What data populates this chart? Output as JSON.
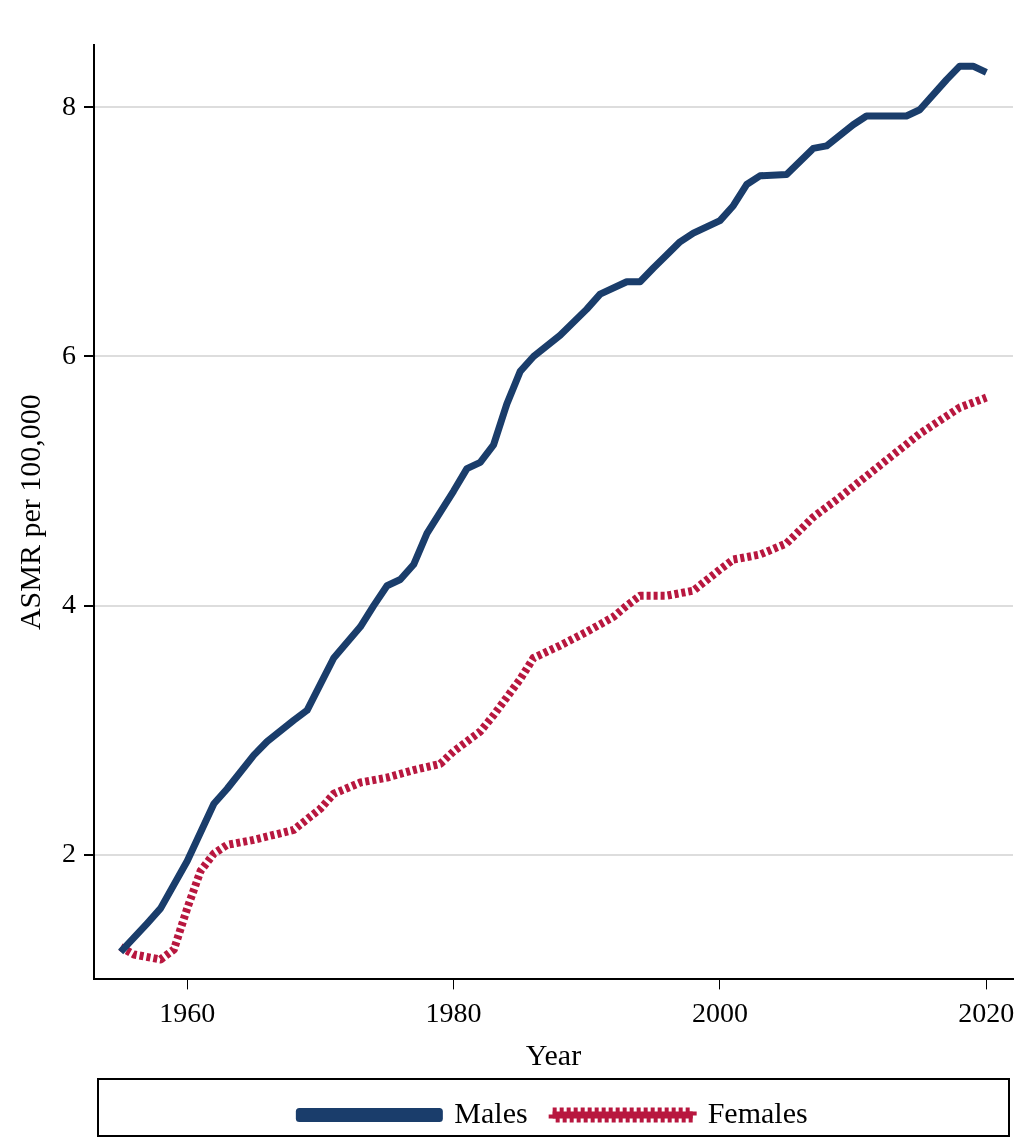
{
  "chart_data": {
    "type": "line",
    "xlabel": "Year",
    "ylabel": "ASMR per 100,000",
    "xlim": [
      1953,
      2022
    ],
    "xticks": [
      1960,
      1980,
      2000,
      2020
    ],
    "ylim": [
      1,
      8.5
    ],
    "yticks": [
      2,
      4,
      6,
      8
    ],
    "grid": "y",
    "legend": "bottom",
    "marker": "none",
    "series": [
      {
        "name": "Males",
        "color": "#1a3d6b",
        "line_style": "solid",
        "x": [
          1955,
          1957,
          1958,
          1960,
          1962,
          1963,
          1965,
          1966,
          1968,
          1969,
          1970,
          1971,
          1973,
          1974,
          1975,
          1976,
          1977,
          1978,
          1980,
          1981,
          1982,
          1983,
          1984,
          1985,
          1986,
          1988,
          1990,
          1991,
          1993,
          1994,
          1995,
          1997,
          1998,
          2000,
          2001,
          2002,
          2003,
          2005,
          2007,
          2008,
          2010,
          2011,
          2014,
          2015,
          2017,
          2018,
          2019,
          2020
        ],
        "values": [
          1.22,
          1.45,
          1.57,
          1.95,
          2.41,
          2.53,
          2.8,
          2.91,
          3.08,
          3.16,
          3.37,
          3.58,
          3.83,
          4.0,
          4.16,
          4.21,
          4.33,
          4.58,
          4.92,
          5.1,
          5.15,
          5.29,
          5.62,
          5.88,
          6.0,
          6.17,
          6.38,
          6.5,
          6.6,
          6.6,
          6.71,
          6.92,
          6.99,
          7.09,
          7.21,
          7.38,
          7.45,
          7.46,
          7.67,
          7.69,
          7.86,
          7.93,
          7.93,
          7.98,
          8.22,
          8.33,
          8.33,
          8.28
        ]
      },
      {
        "name": "Females",
        "color": "#b8173f",
        "line_style": "dotted",
        "x": [
          1955,
          1956,
          1958,
          1959,
          1960,
          1961,
          1962,
          1963,
          1965,
          1968,
          1970,
          1971,
          1973,
          1975,
          1977,
          1979,
          1980,
          1982,
          1983,
          1985,
          1986,
          1988,
          1990,
          1992,
          1993,
          1994,
          1996,
          1998,
          2000,
          2001,
          2003,
          2005,
          2007,
          2009,
          2011,
          2013,
          2015,
          2017,
          2018,
          2020
        ],
        "values": [
          1.26,
          1.2,
          1.16,
          1.24,
          1.57,
          1.87,
          2.01,
          2.08,
          2.12,
          2.2,
          2.37,
          2.49,
          2.58,
          2.62,
          2.68,
          2.73,
          2.83,
          2.99,
          3.12,
          3.41,
          3.58,
          3.68,
          3.79,
          3.91,
          4.0,
          4.08,
          4.08,
          4.12,
          4.29,
          4.37,
          4.41,
          4.5,
          4.71,
          4.87,
          5.04,
          5.21,
          5.38,
          5.52,
          5.59,
          5.67
        ]
      }
    ]
  }
}
